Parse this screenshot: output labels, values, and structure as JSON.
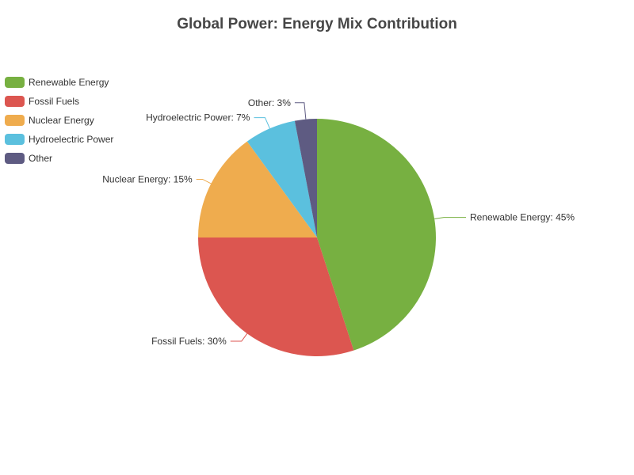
{
  "chart_data": {
    "type": "pie",
    "title": "Global Power: Energy Mix Contribution",
    "legend_position": "top-left",
    "slices": [
      {
        "name": "Renewable Energy",
        "value": 45,
        "color": "#77b041",
        "label": "Renewable Energy: 45%"
      },
      {
        "name": "Fossil Fuels",
        "value": 30,
        "color": "#dc5650",
        "label": "Fossil Fuels: 30%"
      },
      {
        "name": "Nuclear Energy",
        "value": 15,
        "color": "#efac4e",
        "label": "Nuclear Energy: 15%"
      },
      {
        "name": "Hydroelectric Power",
        "value": 7,
        "color": "#5bc0de",
        "label": "Hydroelectric Power: 7%"
      },
      {
        "name": "Other",
        "value": 3,
        "color": "#5e5b82",
        "label": "Other: 3%"
      }
    ]
  }
}
